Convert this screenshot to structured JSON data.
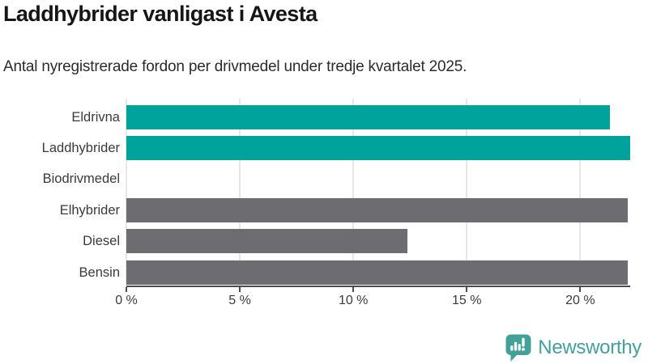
{
  "title": "Laddhybrider vanligast i Avesta",
  "subtitle": "Antal nyregistrerade fordon per drivmedel under tredje kvartalet 2025.",
  "chart_data": {
    "type": "bar",
    "orientation": "horizontal",
    "categories": [
      "Eldrivna",
      "Laddhybrider",
      "Biodrivmedel",
      "Elhybrider",
      "Diesel",
      "Bensin"
    ],
    "values": [
      21.3,
      22.2,
      0,
      22.1,
      12.4,
      22.1
    ],
    "unit": "%",
    "bar_colors": [
      "#00a39b",
      "#00a39b",
      "#6d6d71",
      "#6d6d71",
      "#6d6d71",
      "#6d6d71"
    ],
    "xlim": [
      0,
      22.2
    ],
    "xticks": [
      0,
      5,
      10,
      15,
      20
    ],
    "xtick_labels": [
      "0 %",
      "5 %",
      "10 %",
      "15 %",
      "20 %"
    ],
    "grid": true,
    "legend": "none",
    "title": "Laddhybrider vanligast i Avesta",
    "xlabel": "",
    "ylabel": ""
  },
  "colors": {
    "highlight": "#00a39b",
    "neutral": "#6d6d71",
    "grid": "#e6e6e6",
    "axis": "#4c4c4e",
    "logo": "#45a09a"
  },
  "footer": {
    "brand": "Newsworthy"
  }
}
